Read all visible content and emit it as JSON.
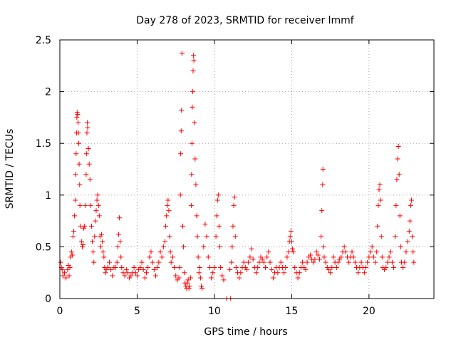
{
  "chart_data": {
    "type": "scatter",
    "title": "Day 278 of 2023, SRMTID for receiver lmmf",
    "xlabel": "GPS time / hours",
    "ylabel": "SRMTID / TECUs",
    "xlim": [
      0,
      24.2
    ],
    "ylim": [
      0,
      2.5
    ],
    "x_ticks": [
      0,
      5,
      10,
      15,
      20
    ],
    "x_tick_labels": [
      "0",
      "5",
      "10",
      "15",
      "20"
    ],
    "y_ticks": [
      0,
      0.5,
      1,
      1.5,
      2,
      2.5
    ],
    "y_tick_labels": [
      "0",
      "0.5",
      "1",
      "1.5",
      "2",
      "2.5"
    ],
    "grid": true,
    "marker": "plus",
    "color": "#ff0000",
    "series": [
      {
        "name": "SRMTID",
        "points": [
          [
            0.05,
            0.35
          ],
          [
            0.1,
            0.3
          ],
          [
            0.15,
            0.28
          ],
          [
            0.2,
            0.22
          ],
          [
            0.3,
            0.25
          ],
          [
            0.4,
            0.2
          ],
          [
            0.5,
            0.28
          ],
          [
            0.55,
            0.32
          ],
          [
            0.6,
            0.22
          ],
          [
            0.65,
            0.3
          ],
          [
            0.7,
            0.4
          ],
          [
            0.75,
            0.45
          ],
          [
            0.8,
            0.42
          ],
          [
            0.85,
            0.6
          ],
          [
            0.9,
            0.65
          ],
          [
            0.95,
            0.8
          ],
          [
            1.0,
            0.95
          ],
          [
            1.02,
            1.2
          ],
          [
            1.05,
            1.4
          ],
          [
            1.08,
            1.6
          ],
          [
            1.1,
            1.75
          ],
          [
            1.12,
            1.8
          ],
          [
            1.15,
            1.78
          ],
          [
            1.18,
            1.7
          ],
          [
            1.2,
            1.6
          ],
          [
            1.22,
            1.5
          ],
          [
            1.25,
            1.3
          ],
          [
            1.28,
            1.1
          ],
          [
            1.3,
            0.9
          ],
          [
            1.35,
            0.7
          ],
          [
            1.4,
            0.55
          ],
          [
            1.45,
            0.5
          ],
          [
            1.5,
            0.52
          ],
          [
            1.55,
            0.68
          ],
          [
            1.6,
            0.7
          ],
          [
            1.65,
            0.9
          ],
          [
            1.7,
            1.2
          ],
          [
            1.72,
            1.4
          ],
          [
            1.75,
            1.6
          ],
          [
            1.78,
            1.7
          ],
          [
            1.8,
            1.65
          ],
          [
            1.85,
            1.45
          ],
          [
            1.9,
            1.3
          ],
          [
            1.95,
            1.15
          ],
          [
            2.0,
            0.9
          ],
          [
            2.05,
            0.7
          ],
          [
            2.1,
            0.55
          ],
          [
            2.15,
            0.45
          ],
          [
            2.2,
            0.35
          ],
          [
            2.25,
            0.6
          ],
          [
            2.3,
            0.75
          ],
          [
            2.35,
            0.85
          ],
          [
            2.4,
            0.95
          ],
          [
            2.45,
            1.0
          ],
          [
            2.5,
            0.9
          ],
          [
            2.55,
            0.8
          ],
          [
            2.6,
            0.6
          ],
          [
            2.65,
            0.5
          ],
          [
            2.7,
            0.62
          ],
          [
            2.75,
            0.55
          ],
          [
            2.8,
            0.45
          ],
          [
            2.85,
            0.4
          ],
          [
            2.9,
            0.3
          ],
          [
            2.95,
            0.25
          ],
          [
            3.0,
            0.28
          ],
          [
            3.1,
            0.3
          ],
          [
            3.2,
            0.35
          ],
          [
            3.3,
            0.28
          ],
          [
            3.4,
            0.22
          ],
          [
            3.5,
            0.3
          ],
          [
            3.6,
            0.3
          ],
          [
            3.7,
            0.35
          ],
          [
            3.75,
            0.5
          ],
          [
            3.8,
            0.62
          ],
          [
            3.85,
            0.78
          ],
          [
            3.9,
            0.55
          ],
          [
            3.95,
            0.4
          ],
          [
            4.0,
            0.3
          ],
          [
            4.1,
            0.25
          ],
          [
            4.2,
            0.22
          ],
          [
            4.3,
            0.28
          ],
          [
            4.4,
            0.25
          ],
          [
            4.5,
            0.2
          ],
          [
            4.6,
            0.22
          ],
          [
            4.7,
            0.25
          ],
          [
            4.8,
            0.3
          ],
          [
            4.9,
            0.25
          ],
          [
            5.0,
            0.22
          ],
          [
            5.1,
            0.28
          ],
          [
            5.2,
            0.3
          ],
          [
            5.3,
            0.35
          ],
          [
            5.4,
            0.28
          ],
          [
            5.5,
            0.2
          ],
          [
            5.6,
            0.25
          ],
          [
            5.7,
            0.3
          ],
          [
            5.8,
            0.4
          ],
          [
            5.9,
            0.45
          ],
          [
            6.0,
            0.35
          ],
          [
            6.1,
            0.28
          ],
          [
            6.2,
            0.22
          ],
          [
            6.3,
            0.3
          ],
          [
            6.4,
            0.35
          ],
          [
            6.5,
            0.45
          ],
          [
            6.6,
            0.4
          ],
          [
            6.7,
            0.5
          ],
          [
            6.8,
            0.55
          ],
          [
            6.85,
            0.7
          ],
          [
            6.9,
            0.8
          ],
          [
            6.95,
            0.9
          ],
          [
            7.0,
            0.95
          ],
          [
            7.05,
            0.85
          ],
          [
            7.1,
            0.6
          ],
          [
            7.15,
            0.45
          ],
          [
            7.2,
            0.35
          ],
          [
            7.3,
            0.4
          ],
          [
            7.4,
            0.3
          ],
          [
            7.5,
            0.22
          ],
          [
            7.6,
            0.18
          ],
          [
            7.7,
            0.2
          ],
          [
            7.75,
            0.3
          ],
          [
            7.8,
            1.0
          ],
          [
            7.82,
            1.4
          ],
          [
            7.85,
            1.62
          ],
          [
            7.87,
            1.82
          ],
          [
            7.9,
            2.37
          ],
          [
            7.95,
            0.7
          ],
          [
            8.0,
            0.5
          ],
          [
            8.05,
            0.25
          ],
          [
            8.1,
            0.15
          ],
          [
            8.15,
            0.12
          ],
          [
            8.2,
            0.1
          ],
          [
            8.25,
            0.15
          ],
          [
            8.3,
            0.18
          ],
          [
            8.35,
            0.1
          ],
          [
            8.4,
            0.12
          ],
          [
            8.45,
            0.2
          ],
          [
            8.5,
            0.9
          ],
          [
            8.52,
            1.2
          ],
          [
            8.55,
            1.5
          ],
          [
            8.57,
            1.85
          ],
          [
            8.6,
            2.0
          ],
          [
            8.62,
            2.2
          ],
          [
            8.65,
            2.35
          ],
          [
            8.67,
            2.3
          ],
          [
            8.7,
            1.7
          ],
          [
            8.75,
            1.35
          ],
          [
            8.8,
            1.1
          ],
          [
            8.85,
            0.8
          ],
          [
            8.9,
            0.6
          ],
          [
            8.95,
            0.4
          ],
          [
            9.0,
            0.25
          ],
          [
            9.05,
            0.3
          ],
          [
            9.1,
            0.2
          ],
          [
            9.15,
            0.12
          ],
          [
            9.2,
            0.1
          ],
          [
            9.3,
            0.5
          ],
          [
            9.4,
            0.72
          ],
          [
            9.5,
            0.6
          ],
          [
            9.6,
            0.4
          ],
          [
            9.7,
            0.3
          ],
          [
            9.8,
            0.2
          ],
          [
            9.9,
            0.25
          ],
          [
            10.0,
            0.3
          ],
          [
            10.1,
            0.6
          ],
          [
            10.15,
            0.8
          ],
          [
            10.2,
            0.95
          ],
          [
            10.25,
            1.0
          ],
          [
            10.3,
            0.7
          ],
          [
            10.35,
            0.5
          ],
          [
            10.4,
            0.3
          ],
          [
            10.5,
            0.22
          ],
          [
            10.6,
            0.18
          ],
          [
            10.8,
            0.0
          ],
          [
            11.0,
            0.28
          ],
          [
            11.05,
            0.0
          ],
          [
            11.1,
            0.35
          ],
          [
            11.15,
            0.5
          ],
          [
            11.2,
            0.7
          ],
          [
            11.25,
            0.9
          ],
          [
            11.3,
            0.98
          ],
          [
            11.35,
            0.6
          ],
          [
            11.4,
            0.3
          ],
          [
            11.5,
            0.25
          ],
          [
            11.6,
            0.2
          ],
          [
            11.7,
            0.25
          ],
          [
            11.8,
            0.3
          ],
          [
            11.9,
            0.35
          ],
          [
            12.0,
            0.3
          ],
          [
            12.1,
            0.28
          ],
          [
            12.2,
            0.35
          ],
          [
            12.3,
            0.4
          ],
          [
            12.4,
            0.48
          ],
          [
            12.5,
            0.38
          ],
          [
            12.6,
            0.3
          ],
          [
            12.7,
            0.25
          ],
          [
            12.8,
            0.3
          ],
          [
            12.9,
            0.35
          ],
          [
            13.0,
            0.4
          ],
          [
            13.1,
            0.38
          ],
          [
            13.2,
            0.35
          ],
          [
            13.3,
            0.3
          ],
          [
            13.4,
            0.4
          ],
          [
            13.5,
            0.45
          ],
          [
            13.6,
            0.35
          ],
          [
            13.7,
            0.28
          ],
          [
            13.8,
            0.2
          ],
          [
            13.9,
            0.25
          ],
          [
            14.0,
            0.3
          ],
          [
            14.1,
            0.25
          ],
          [
            14.2,
            0.3
          ],
          [
            14.3,
            0.35
          ],
          [
            14.4,
            0.3
          ],
          [
            14.5,
            0.25
          ],
          [
            14.6,
            0.3
          ],
          [
            14.7,
            0.4
          ],
          [
            14.8,
            0.45
          ],
          [
            14.85,
            0.55
          ],
          [
            14.9,
            0.6
          ],
          [
            14.95,
            0.65
          ],
          [
            15.0,
            0.55
          ],
          [
            15.05,
            0.48
          ],
          [
            15.1,
            0.45
          ],
          [
            15.2,
            0.3
          ],
          [
            15.3,
            0.25
          ],
          [
            15.4,
            0.2
          ],
          [
            15.5,
            0.25
          ],
          [
            15.6,
            0.3
          ],
          [
            15.7,
            0.35
          ],
          [
            15.8,
            0.3
          ],
          [
            15.9,
            0.28
          ],
          [
            16.0,
            0.35
          ],
          [
            16.1,
            0.4
          ],
          [
            16.2,
            0.42
          ],
          [
            16.3,
            0.38
          ],
          [
            16.4,
            0.35
          ],
          [
            16.5,
            0.38
          ],
          [
            16.6,
            0.45
          ],
          [
            16.7,
            0.42
          ],
          [
            16.8,
            0.38
          ],
          [
            16.9,
            0.6
          ],
          [
            16.95,
            0.85
          ],
          [
            17.0,
            1.1
          ],
          [
            17.02,
            1.25
          ],
          [
            17.05,
            0.5
          ],
          [
            17.1,
            0.4
          ],
          [
            17.2,
            0.35
          ],
          [
            17.3,
            0.3
          ],
          [
            17.4,
            0.28
          ],
          [
            17.5,
            0.25
          ],
          [
            17.6,
            0.3
          ],
          [
            17.7,
            0.4
          ],
          [
            17.8,
            0.35
          ],
          [
            17.9,
            0.3
          ],
          [
            18.0,
            0.35
          ],
          [
            18.1,
            0.38
          ],
          [
            18.2,
            0.4
          ],
          [
            18.3,
            0.45
          ],
          [
            18.4,
            0.5
          ],
          [
            18.5,
            0.45
          ],
          [
            18.6,
            0.4
          ],
          [
            18.7,
            0.35
          ],
          [
            18.8,
            0.4
          ],
          [
            18.9,
            0.45
          ],
          [
            19.0,
            0.4
          ],
          [
            19.1,
            0.35
          ],
          [
            19.2,
            0.3
          ],
          [
            19.3,
            0.25
          ],
          [
            19.4,
            0.3
          ],
          [
            19.5,
            0.35
          ],
          [
            19.6,
            0.3
          ],
          [
            19.7,
            0.25
          ],
          [
            19.8,
            0.3
          ],
          [
            19.9,
            0.35
          ],
          [
            20.0,
            0.4
          ],
          [
            20.1,
            0.45
          ],
          [
            20.2,
            0.5
          ],
          [
            20.3,
            0.4
          ],
          [
            20.4,
            0.35
          ],
          [
            20.5,
            0.45
          ],
          [
            20.55,
            0.7
          ],
          [
            20.6,
            0.9
          ],
          [
            20.65,
            1.05
          ],
          [
            20.7,
            1.1
          ],
          [
            20.75,
            0.95
          ],
          [
            20.8,
            0.6
          ],
          [
            20.85,
            0.4
          ],
          [
            20.9,
            0.3
          ],
          [
            21.0,
            0.28
          ],
          [
            21.1,
            0.3
          ],
          [
            21.2,
            0.35
          ],
          [
            21.3,
            0.4
          ],
          [
            21.4,
            0.45
          ],
          [
            21.5,
            0.35
          ],
          [
            21.6,
            0.3
          ],
          [
            21.7,
            0.6
          ],
          [
            21.75,
            0.9
          ],
          [
            21.8,
            1.15
          ],
          [
            21.85,
            1.35
          ],
          [
            21.9,
            1.47
          ],
          [
            21.95,
            1.2
          ],
          [
            22.0,
            0.8
          ],
          [
            22.05,
            0.5
          ],
          [
            22.1,
            0.35
          ],
          [
            22.2,
            0.3
          ],
          [
            22.3,
            0.35
          ],
          [
            22.4,
            0.45
          ],
          [
            22.5,
            0.55
          ],
          [
            22.6,
            0.65
          ],
          [
            22.65,
            0.75
          ],
          [
            22.7,
            0.9
          ],
          [
            22.75,
            0.95
          ],
          [
            22.8,
            0.6
          ],
          [
            22.85,
            0.45
          ],
          [
            22.9,
            0.35
          ]
        ]
      }
    ]
  }
}
